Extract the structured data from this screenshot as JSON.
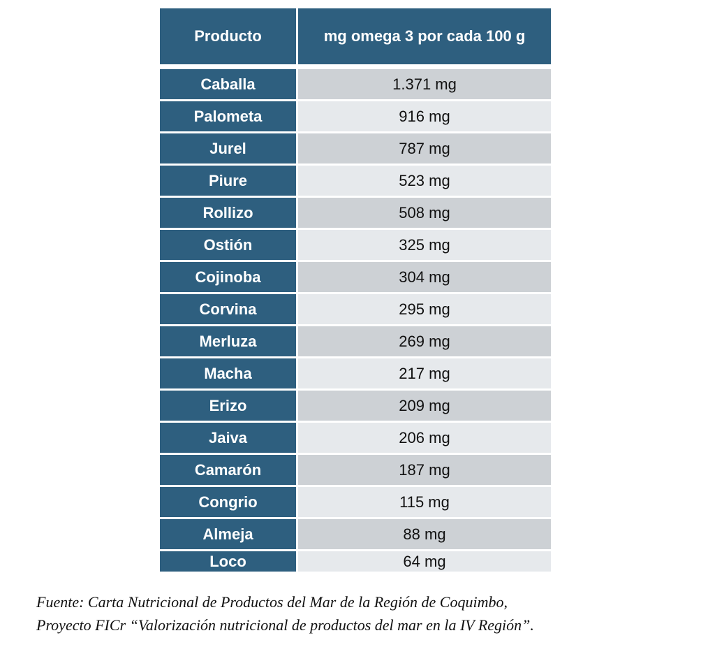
{
  "table": {
    "headers": [
      "Producto",
      "mg omega 3 por cada 100 g"
    ],
    "rows": [
      [
        "Caballa",
        "1.371 mg"
      ],
      [
        "Palometa",
        "916 mg"
      ],
      [
        "Jurel",
        "787 mg"
      ],
      [
        "Piure",
        "523 mg"
      ],
      [
        "Rollizo",
        "508 mg"
      ],
      [
        "Ostión",
        "325 mg"
      ],
      [
        "Cojinoba",
        "304 mg"
      ],
      [
        "Corvina",
        "295 mg"
      ],
      [
        "Merluza",
        "269 mg"
      ],
      [
        "Macha",
        "217 mg"
      ],
      [
        "Erizo",
        "209 mg"
      ],
      [
        "Jaiva",
        "206 mg"
      ],
      [
        "Camarón",
        "187 mg"
      ],
      [
        "Congrio",
        "115 mg"
      ],
      [
        "Almeja",
        "88 mg"
      ],
      [
        "Loco",
        "64 mg"
      ]
    ]
  },
  "caption": {
    "line1": "Fuente: Carta Nutricional de Productos del Mar de la Región de Coquimbo,",
    "line2": "Proyecto FICr “Valorización nutricional de productos del mar en la IV Región”."
  },
  "colors": {
    "header": "#2e5f7f",
    "row_dark": "#cdd1d5",
    "row_light": "#e6e9ec"
  }
}
